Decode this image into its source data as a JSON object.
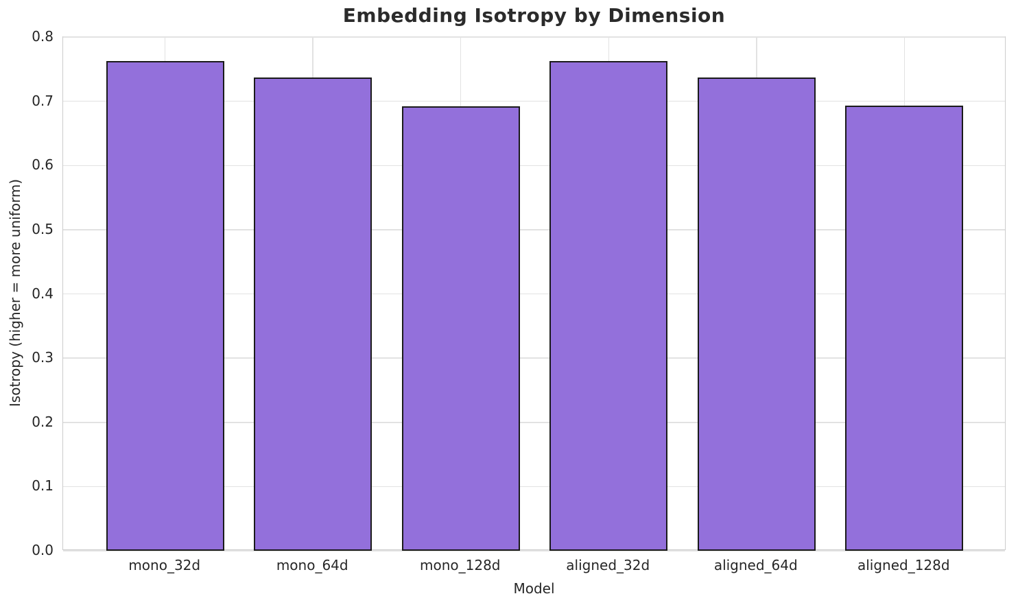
{
  "chart_data": {
    "type": "bar",
    "title": "Embedding Isotropy by Dimension",
    "xlabel": "Model",
    "ylabel": "Isotropy (higher = more uniform)",
    "categories": [
      "mono_32d",
      "mono_64d",
      "mono_128d",
      "aligned_32d",
      "aligned_64d",
      "aligned_128d"
    ],
    "values": [
      0.763,
      0.737,
      0.692,
      0.763,
      0.737,
      0.693
    ],
    "ylim": [
      0.0,
      0.8
    ],
    "ytick_labels": [
      "0.0",
      "0.1",
      "0.2",
      "0.3",
      "0.4",
      "0.5",
      "0.6",
      "0.7",
      "0.8"
    ],
    "grid": "on",
    "legend": "none",
    "bar_color": "#9370DB",
    "bar_edge_color": "#1a1a1a",
    "grid_color": "#e2e2e2",
    "spine_color": "#cccccc",
    "text_color": "#262626",
    "background_color": "#ffffff"
  }
}
